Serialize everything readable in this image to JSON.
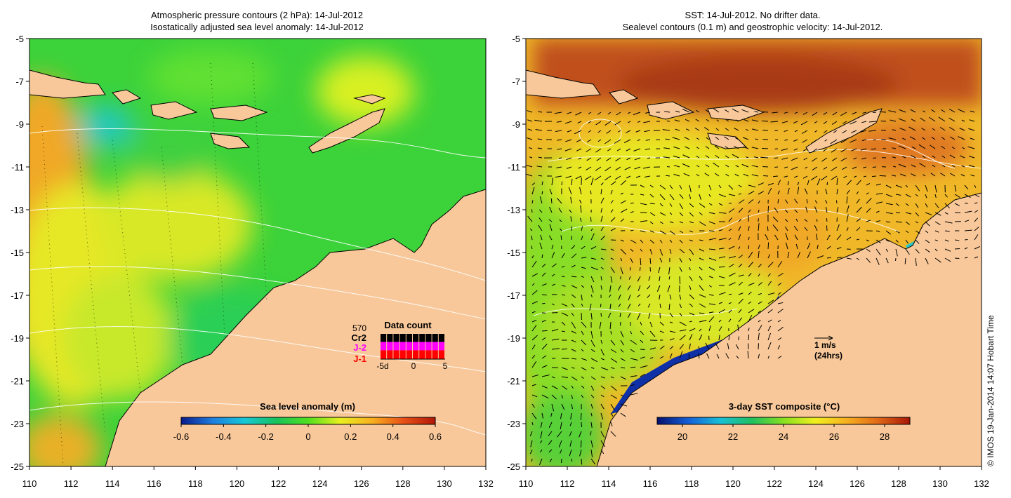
{
  "left_panel": {
    "title_line1": "Atmospheric pressure contours (2 hPa): 14-Jul-2012",
    "title_line2": "Isostatically adjusted sea level anomaly: 14-Jul-2012",
    "x_ticks": [
      "110",
      "112",
      "114",
      "116",
      "118",
      "120",
      "122",
      "124",
      "126",
      "128",
      "130",
      "132"
    ],
    "y_ticks": [
      "-5",
      "-7",
      "-9",
      "-11",
      "-13",
      "-15",
      "-17",
      "-19",
      "-21",
      "-23",
      "-25"
    ],
    "colorbar": {
      "title": "Sea level anomaly (m)",
      "ticks": [
        "-0.6",
        "-0.4",
        "-0.2",
        "0",
        "0.2",
        "0.4",
        "0.6"
      ],
      "range": [
        -0.6,
        0.6
      ],
      "colors": [
        "#0a1a8c",
        "#1f7fe0",
        "#17c8d8",
        "#19c25a",
        "#50e020",
        "#e8f020",
        "#f8b020",
        "#e85018",
        "#b01808"
      ]
    },
    "inset": {
      "title": "Data count",
      "count": "570",
      "legend": [
        {
          "label": "Cr2",
          "color": "#000000"
        },
        {
          "label": "J-2",
          "color": "#ff00ff"
        },
        {
          "label": "J-1",
          "color": "#ff0000"
        }
      ],
      "x_ticks": [
        "-5d",
        "0",
        "5"
      ]
    }
  },
  "right_panel": {
    "title_line1": "SST: 14-Jul-2012. No drifter data.",
    "title_line2": "Sealevel contours (0.1 m) and geostrophic velocity: 14-Jul-2012.",
    "x_ticks": [
      "110",
      "112",
      "114",
      "116",
      "118",
      "120",
      "122",
      "124",
      "126",
      "128",
      "130",
      "132"
    ],
    "y_ticks": [
      "-5",
      "-7",
      "-9",
      "-11",
      "-13",
      "-15",
      "-17",
      "-19",
      "-21",
      "-23",
      "-25"
    ],
    "colorbar": {
      "title": "3-day SST composite (°C)",
      "ticks": [
        "20",
        "22",
        "24",
        "26",
        "28"
      ],
      "range": [
        19,
        29
      ],
      "colors": [
        "#06106e",
        "#1460d8",
        "#18c0d8",
        "#20c060",
        "#88e020",
        "#f0f020",
        "#f8b020",
        "#e06818",
        "#a81808"
      ]
    },
    "velocity_key": {
      "label": "1 m/s",
      "sublabel": "(24hrs)"
    }
  },
  "credit": "© IMOS 19-Jan-2014 14:07 Hobart Time",
  "colors": {
    "land": "#f8c89a",
    "coast": "#000000",
    "contour": "#ffffff"
  }
}
